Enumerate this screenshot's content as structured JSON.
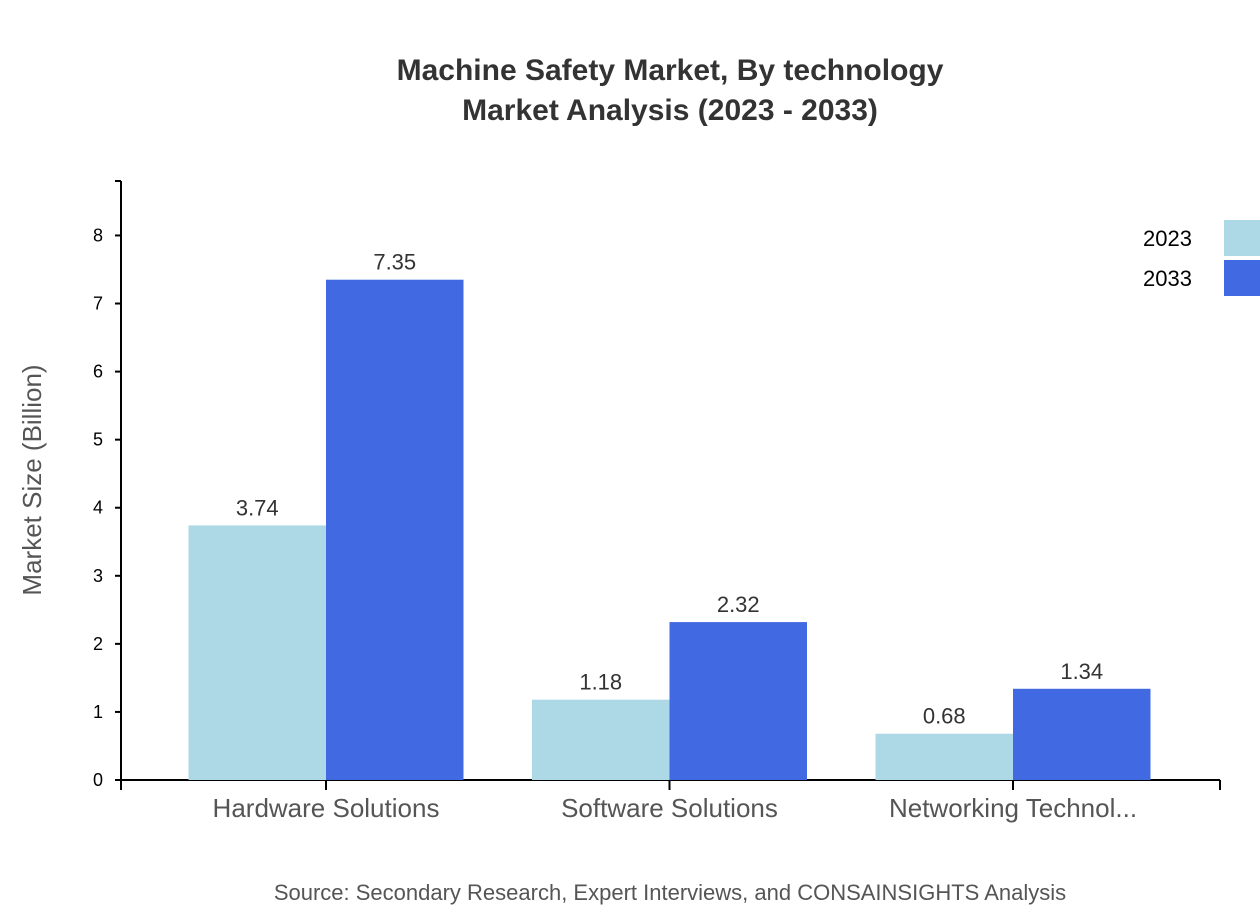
{
  "chart_data": {
    "type": "bar",
    "title": "Machine Safety Market, By technology",
    "subtitle": "Market Analysis (2023 - 2033)",
    "categories": [
      "Hardware Solutions",
      "Software Solutions",
      "Networking Technol..."
    ],
    "series": [
      {
        "name": "2023",
        "values": [
          3.74,
          1.18,
          0.68
        ],
        "color": "#add8e6"
      },
      {
        "name": "2033",
        "values": [
          7.35,
          2.32,
          1.34
        ],
        "color": "#4169e1"
      }
    ],
    "xlabel": "",
    "ylabel": "Market Size (Billion)",
    "ylim": [
      0,
      8.8
    ],
    "yticks": [
      0,
      1,
      2,
      3,
      4,
      5,
      6,
      7,
      8
    ],
    "grid": false,
    "legend": "top-right",
    "source": "Source: Secondary Research, Expert Interviews, and CONSAINSIGHTS Analysis"
  }
}
